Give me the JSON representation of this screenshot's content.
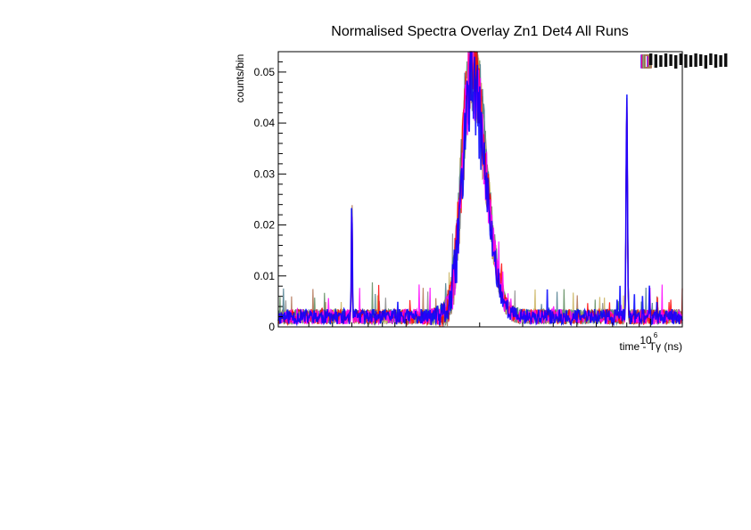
{
  "chart_data": {
    "type": "line",
    "title": "Normalised Spectra Overlay Zn1 Det4 All Runs",
    "xlabel": "time - Tγ (ns)",
    "ylabel": "counts/bin",
    "x_scale": "log",
    "x_tick_label": "10",
    "x_tick_exponent": "6",
    "x_tick_value": 1000000,
    "xlim": [
      30000,
      1350000
    ],
    "ylim": [
      0,
      0.054
    ],
    "y_ticks": [
      0,
      0.01,
      0.02,
      0.03,
      0.04,
      0.05
    ],
    "y_tick_labels": [
      "0",
      "0.01",
      "0.02",
      "0.03",
      "0.04",
      "0.05"
    ],
    "grid": false,
    "legend": "top-right",
    "features": {
      "baseline": 0.002,
      "noise_amplitude": 0.0015,
      "sharp_peak_1": {
        "x": 60000,
        "y": 0.026
      },
      "broad_peak": {
        "x": 185000,
        "y": 0.054,
        "width_decades": 0.05
      },
      "sharp_peak_2": {
        "x": 800000,
        "y": 0.045
      }
    },
    "series": [
      {
        "color": "#0000ff",
        "peak": 0.047,
        "seed": 11
      },
      {
        "color": "#ff00ff",
        "peak": 0.05,
        "seed": 23
      },
      {
        "color": "#ff0000",
        "peak": 0.052,
        "seed": 37
      },
      {
        "color": "#4a7a8c",
        "peak": 0.054,
        "seed": 41
      },
      {
        "color": "#c9b25a",
        "peak": 0.054,
        "seed": 53
      },
      {
        "color": "#8a8a8a",
        "peak": 0.051,
        "seed": 67
      },
      {
        "color": "#5c8a5c",
        "peak": 0.053,
        "seed": 79
      },
      {
        "color": "#b07050",
        "peak": 0.049,
        "seed": 83
      }
    ]
  }
}
